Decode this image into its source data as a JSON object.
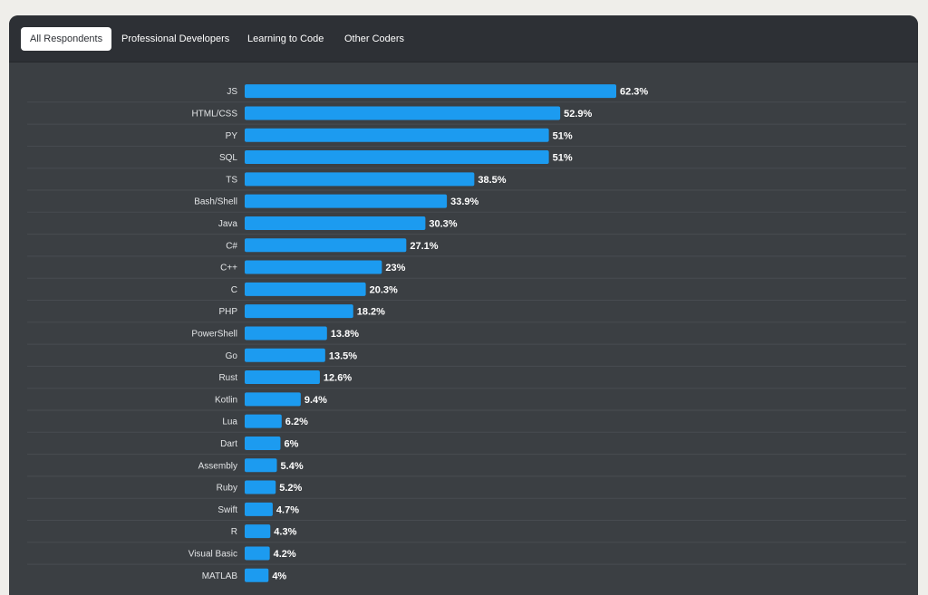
{
  "tabs": [
    {
      "label": "All Respondents",
      "active": true
    },
    {
      "label": "Professional Developers",
      "active": false
    },
    {
      "label": "Learning to Code",
      "active": false
    },
    {
      "label": "Other Coders",
      "active": false
    }
  ],
  "colors": {
    "page_bg": "#efeeea",
    "card_bg": "#3b3f43",
    "tabbar_bg": "#2d3035",
    "bar": "#1c9bf0",
    "text": "#ffffff"
  },
  "chart_data": {
    "type": "bar",
    "orientation": "horizontal",
    "categories": [
      "JS",
      "HTML/CSS",
      "PY",
      "SQL",
      "TS",
      "Bash/Shell",
      "Java",
      "C#",
      "C++",
      "C",
      "PHP",
      "PowerShell",
      "Go",
      "Rust",
      "Kotlin",
      "Lua",
      "Dart",
      "Assembly",
      "Ruby",
      "Swift",
      "R",
      "Visual Basic",
      "MATLAB"
    ],
    "values": [
      62.3,
      52.9,
      51,
      51,
      38.5,
      33.9,
      30.3,
      27.1,
      23,
      20.3,
      18.2,
      13.8,
      13.5,
      12.6,
      9.4,
      6.2,
      6,
      5.4,
      5.2,
      4.7,
      4.3,
      4.2,
      4
    ],
    "value_labels": [
      "62.3%",
      "52.9%",
      "51%",
      "51%",
      "38.5%",
      "33.9%",
      "30.3%",
      "27.1%",
      "23%",
      "20.3%",
      "18.2%",
      "13.8%",
      "13.5%",
      "12.6%",
      "9.4%",
      "6.2%",
      "6%",
      "5.4%",
      "5.2%",
      "4.7%",
      "4.3%",
      "4.2%",
      "4%"
    ],
    "unit": "%",
    "grid": false
  }
}
